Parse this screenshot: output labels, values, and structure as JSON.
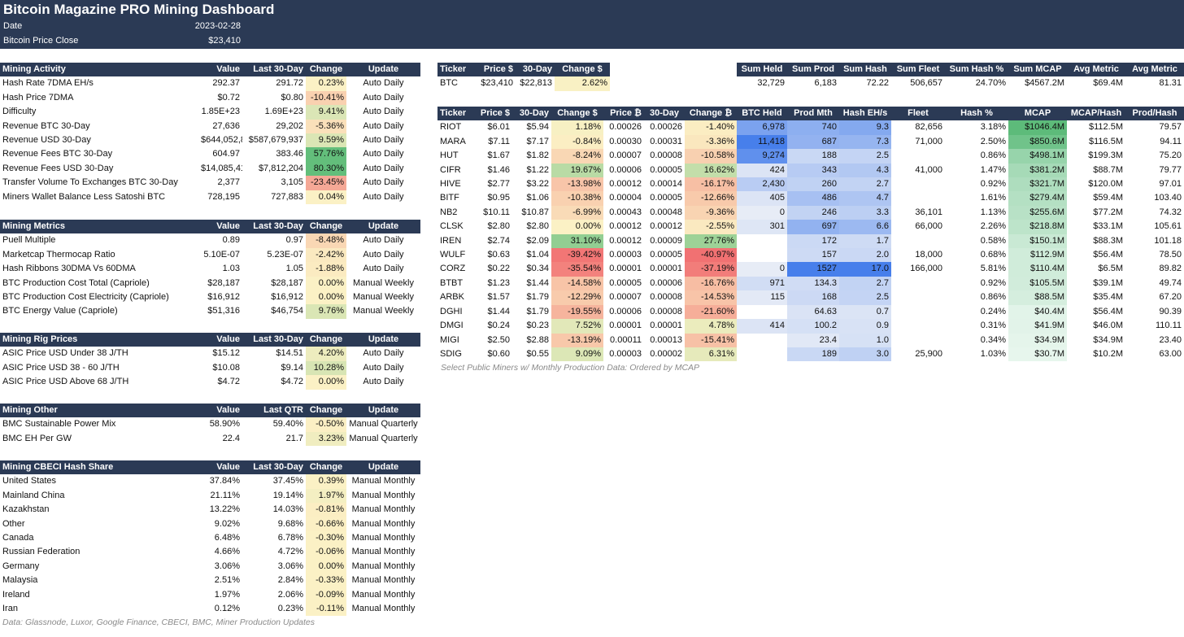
{
  "header": {
    "title": "Bitcoin Magazine PRO Mining Dashboard",
    "date_label": "Date",
    "date_value": "2023-02-28",
    "price_label": "Bitcoin Price Close",
    "price_value": "$23,410"
  },
  "colors": {
    "header_bg": "#2b3a55",
    "neutral_yellow": "#fdf3c6",
    "positive_green": "#63be7b",
    "negative_red": "#f8696b",
    "strong_blue": "#5a8ae6",
    "light_blue": "#dfe8f8"
  },
  "sections": [
    {
      "id": "activity",
      "headers": [
        "Mining Activity",
        "Value",
        "Last 30-Day",
        "Change",
        "Update"
      ],
      "rows": [
        [
          "Hash Rate 7DMA EH/s",
          "292.37",
          "291.72",
          "0.23%",
          "Auto Daily"
        ],
        [
          "Hash Price 7DMA",
          "$0.72",
          "$0.80",
          "-10.41%",
          "Auto Daily"
        ],
        [
          "Difficulty",
          "1.85E+23",
          "1.69E+23",
          "9.41%",
          "Auto Daily"
        ],
        [
          "Revenue BTC 30-Day",
          "27,636",
          "29,202",
          "-5.36%",
          "Auto Daily"
        ],
        [
          "Revenue USD 30-Day",
          "$644,052,836",
          "$587,679,937",
          "9.59%",
          "Auto Daily"
        ],
        [
          "Revenue Fees BTC 30-Day",
          "604.97",
          "383.46",
          "57.76%",
          "Auto Daily"
        ],
        [
          "Revenue Fees USD 30-Day",
          "$14,085,418",
          "$7,812,204",
          "80.30%",
          "Auto Daily"
        ],
        [
          "Transfer Volume To Exchanges BTC 30-Day",
          "2,377",
          "3,105",
          "-23.45%",
          "Auto Daily"
        ],
        [
          "Miners Wallet Balance Less Satoshi BTC",
          "728,195",
          "727,883",
          "0.04%",
          "Auto Daily"
        ]
      ]
    },
    {
      "id": "metrics",
      "headers": [
        "Mining Metrics",
        "Value",
        "Last 30-Day",
        "Change",
        "Update"
      ],
      "rows": [
        [
          "Puell Multiple",
          "0.89",
          "0.97",
          "-8.48%",
          "Auto Daily"
        ],
        [
          "Marketcap Thermocap Ratio",
          "5.10E-07",
          "5.23E-07",
          "-2.42%",
          "Auto Daily"
        ],
        [
          "Hash Ribbons 30DMA Vs 60DMA",
          "1.03",
          "1.05",
          "-1.88%",
          "Auto Daily"
        ],
        [
          "BTC Production Cost Total (Capriole)",
          "$28,187",
          "$28,187",
          "0.00%",
          "Manual Weekly"
        ],
        [
          "BTC Production Cost Electricity (Capriole)",
          "$16,912",
          "$16,912",
          "0.00%",
          "Manual Weekly"
        ],
        [
          "BTC Energy Value (Capriole)",
          "$51,316",
          "$46,754",
          "9.76%",
          "Manual Weekly"
        ]
      ]
    },
    {
      "id": "rig",
      "headers": [
        "Mining Rig Prices",
        "Value",
        "Last 30-Day",
        "Change",
        "Update"
      ],
      "rows": [
        [
          "ASIC Price USD Under 38 J/TH",
          "$15.12",
          "$14.51",
          "4.20%",
          "Auto Daily"
        ],
        [
          "ASIC Price USD 38 - 60 J/TH",
          "$10.08",
          "$9.14",
          "10.28%",
          "Auto Daily"
        ],
        [
          "ASIC Price USD Above 68 J/TH",
          "$4.72",
          "$4.72",
          "0.00%",
          "Auto Daily"
        ]
      ]
    },
    {
      "id": "other",
      "headers": [
        "Mining Other",
        "Value",
        "Last QTR",
        "Change",
        "Update"
      ],
      "rows": [
        [
          "BMC Sustainable Power Mix",
          "58.90%",
          "59.40%",
          "-0.50%",
          "Manual Quarterly"
        ],
        [
          "BMC EH Per GW",
          "22.4",
          "21.7",
          "3.23%",
          "Manual Quarterly"
        ]
      ]
    },
    {
      "id": "cbeci",
      "headers": [
        "Mining CBECI Hash Share",
        "Value",
        "Last 30-Day",
        "Change",
        "Update"
      ],
      "rows": [
        [
          "United States",
          "37.84%",
          "37.45%",
          "0.39%",
          "Manual Monthly"
        ],
        [
          "Mainland China",
          "21.11%",
          "19.14%",
          "1.97%",
          "Manual Monthly"
        ],
        [
          "Kazakhstan",
          "13.22%",
          "14.03%",
          "-0.81%",
          "Manual Monthly"
        ],
        [
          "Other",
          "9.02%",
          "9.68%",
          "-0.66%",
          "Manual Monthly"
        ],
        [
          "Canada",
          "6.48%",
          "6.78%",
          "-0.30%",
          "Manual Monthly"
        ],
        [
          "Russian Federation",
          "4.66%",
          "4.72%",
          "-0.06%",
          "Manual Monthly"
        ],
        [
          "Germany",
          "3.06%",
          "3.06%",
          "0.00%",
          "Manual Monthly"
        ],
        [
          "Malaysia",
          "2.51%",
          "2.84%",
          "-0.33%",
          "Manual Monthly"
        ],
        [
          "Ireland",
          "1.97%",
          "2.06%",
          "-0.09%",
          "Manual Monthly"
        ],
        [
          "Iran",
          "0.12%",
          "0.23%",
          "-0.11%",
          "Manual Monthly"
        ]
      ]
    }
  ],
  "btc_table": {
    "headers": [
      "Ticker",
      "Price $",
      "30-Day",
      "Change $"
    ],
    "row": [
      "BTC",
      "$23,410",
      "$22,813",
      "2.62%"
    ]
  },
  "sum_table": {
    "headers": [
      "Sum Held",
      "Sum Prod",
      "Sum Hash",
      "Sum Fleet",
      "Sum Hash %",
      "Sum MCAP",
      "Avg Metric",
      "Avg Metric"
    ],
    "row": [
      "32,729",
      "6,183",
      "72.22",
      "506,657",
      "24.70%",
      "$4567.2M",
      "$69.4M",
      "81.31"
    ]
  },
  "miners": {
    "headers": [
      "Ticker",
      "Price $",
      "30-Day",
      "Change $",
      "Price ₿",
      "30-Day",
      "Change ₿",
      "BTC Held",
      "Prod Mth",
      "Hash EH/s",
      "Fleet",
      "Hash %",
      "MCAP",
      "MCAP/Hash",
      "Prod/Hash"
    ],
    "rows": [
      [
        "RIOT",
        "$6.01",
        "$5.94",
        "1.18%",
        "0.00026",
        "0.00026",
        "-1.40%",
        "6,978",
        "740",
        "9.3",
        "82,656",
        "3.18%",
        "$1046.4M",
        "$112.5M",
        "79.57"
      ],
      [
        "MARA",
        "$7.11",
        "$7.17",
        "-0.84%",
        "0.00030",
        "0.00031",
        "-3.36%",
        "11,418",
        "687",
        "7.3",
        "71,000",
        "2.50%",
        "$850.6M",
        "$116.5M",
        "94.11"
      ],
      [
        "HUT",
        "$1.67",
        "$1.82",
        "-8.24%",
        "0.00007",
        "0.00008",
        "-10.58%",
        "9,274",
        "188",
        "2.5",
        "",
        "0.86%",
        "$498.1M",
        "$199.3M",
        "75.20"
      ],
      [
        "CIFR",
        "$1.46",
        "$1.22",
        "19.67%",
        "0.00006",
        "0.00005",
        "16.62%",
        "424",
        "343",
        "4.3",
        "41,000",
        "1.47%",
        "$381.2M",
        "$88.7M",
        "79.77"
      ],
      [
        "HIVE",
        "$2.77",
        "$3.22",
        "-13.98%",
        "0.00012",
        "0.00014",
        "-16.17%",
        "2,430",
        "260",
        "2.7",
        "",
        "0.92%",
        "$321.7M",
        "$120.0M",
        "97.01"
      ],
      [
        "BITF",
        "$0.95",
        "$1.06",
        "-10.38%",
        "0.00004",
        "0.00005",
        "-12.66%",
        "405",
        "486",
        "4.7",
        "",
        "1.61%",
        "$279.4M",
        "$59.4M",
        "103.40"
      ],
      [
        "NB2",
        "$10.11",
        "$10.87",
        "-6.99%",
        "0.00043",
        "0.00048",
        "-9.36%",
        "0",
        "246",
        "3.3",
        "36,101",
        "1.13%",
        "$255.6M",
        "$77.2M",
        "74.32"
      ],
      [
        "CLSK",
        "$2.80",
        "$2.80",
        "0.00%",
        "0.00012",
        "0.00012",
        "-2.55%",
        "301",
        "697",
        "6.6",
        "66,000",
        "2.26%",
        "$218.8M",
        "$33.1M",
        "105.61"
      ],
      [
        "IREN",
        "$2.74",
        "$2.09",
        "31.10%",
        "0.00012",
        "0.00009",
        "27.76%",
        "",
        "172",
        "1.7",
        "",
        "0.58%",
        "$150.1M",
        "$88.3M",
        "101.18"
      ],
      [
        "WULF",
        "$0.63",
        "$1.04",
        "-39.42%",
        "0.00003",
        "0.00005",
        "-40.97%",
        "",
        "157",
        "2.0",
        "18,000",
        "0.68%",
        "$112.9M",
        "$56.4M",
        "78.50"
      ],
      [
        "CORZ",
        "$0.22",
        "$0.34",
        "-35.54%",
        "0.00001",
        "0.00001",
        "-37.19%",
        "0",
        "1527",
        "17.0",
        "166,000",
        "5.81%",
        "$110.4M",
        "$6.5M",
        "89.82"
      ],
      [
        "BTBT",
        "$1.23",
        "$1.44",
        "-14.58%",
        "0.00005",
        "0.00006",
        "-16.76%",
        "971",
        "134.3",
        "2.7",
        "",
        "0.92%",
        "$105.5M",
        "$39.1M",
        "49.74"
      ],
      [
        "ARBK",
        "$1.57",
        "$1.79",
        "-12.29%",
        "0.00007",
        "0.00008",
        "-14.53%",
        "115",
        "168",
        "2.5",
        "",
        "0.86%",
        "$88.5M",
        "$35.4M",
        "67.20"
      ],
      [
        "DGHI",
        "$1.44",
        "$1.79",
        "-19.55%",
        "0.00006",
        "0.00008",
        "-21.60%",
        "",
        "64.63",
        "0.7",
        "",
        "0.24%",
        "$40.4M",
        "$56.4M",
        "90.39"
      ],
      [
        "DMGI",
        "$0.24",
        "$0.23",
        "7.52%",
        "0.00001",
        "0.00001",
        "4.78%",
        "414",
        "100.2",
        "0.9",
        "",
        "0.31%",
        "$41.9M",
        "$46.0M",
        "110.11"
      ],
      [
        "MIGI",
        "$2.50",
        "$2.88",
        "-13.19%",
        "0.00011",
        "0.00013",
        "-15.41%",
        "",
        "23.4",
        "1.0",
        "",
        "0.34%",
        "$34.9M",
        "$34.9M",
        "23.40"
      ],
      [
        "SDIG",
        "$0.60",
        "$0.55",
        "9.09%",
        "0.00003",
        "0.00002",
        "6.31%",
        "",
        "189",
        "3.0",
        "25,900",
        "1.03%",
        "$30.7M",
        "$10.2M",
        "63.00"
      ]
    ],
    "note": "Select Public Miners w/ Monthly Production Data: Ordered by MCAP"
  },
  "footer": "Data: Glassnode, Luxor, Google Finance, CBECI, BMC, Miner Production Updates"
}
